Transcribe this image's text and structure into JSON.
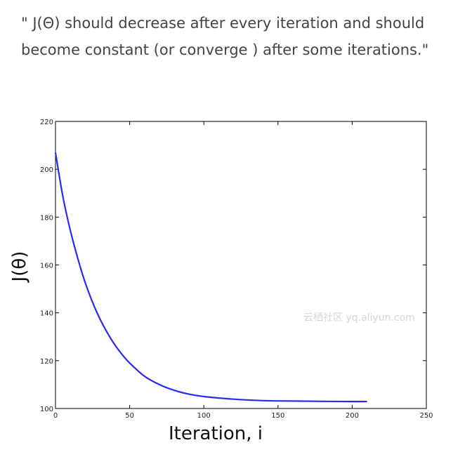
{
  "caption": {
    "text": "\" J(Θ) should decrease after every iteration and should\nbecome constant (or converge ) after some iterations.\""
  },
  "watermark": {
    "text": "云栖社区 yq.aliyun.com"
  },
  "chart_data": {
    "type": "line",
    "title": "",
    "xlabel": "Iteration, i",
    "ylabel": "J(θ)",
    "xlim": [
      0,
      250
    ],
    "ylim": [
      100,
      220
    ],
    "xticks": [
      0,
      50,
      100,
      150,
      200,
      250
    ],
    "yticks": [
      100,
      120,
      140,
      160,
      180,
      200,
      220
    ],
    "grid": false,
    "legend": "none",
    "series": [
      {
        "color": "#2a2af0",
        "x": [
          0,
          5,
          10,
          15,
          20,
          25,
          30,
          35,
          40,
          45,
          50,
          60,
          70,
          80,
          90,
          100,
          120,
          140,
          160,
          180,
          200,
          210
        ],
        "y": [
          207,
          188.5,
          174.5,
          162.8,
          152.7,
          144.4,
          137.4,
          131.6,
          126.6,
          122.5,
          119.0,
          113.5,
          110.0,
          107.6,
          106.0,
          105.0,
          103.9,
          103.3,
          103.1,
          103.0,
          102.9,
          102.9
        ]
      }
    ]
  }
}
